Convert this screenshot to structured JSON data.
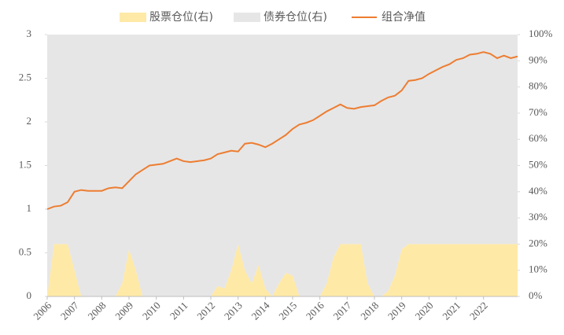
{
  "chart_data": {
    "type": "area",
    "stacked": true,
    "x": [
      2006,
      2006.25,
      2006.5,
      2006.75,
      2007,
      2007.25,
      2007.5,
      2007.75,
      2008,
      2008.25,
      2008.5,
      2008.75,
      2009,
      2009.25,
      2009.5,
      2009.75,
      2010,
      2010.25,
      2010.5,
      2010.75,
      2011,
      2011.25,
      2011.5,
      2011.75,
      2012,
      2012.25,
      2012.5,
      2012.75,
      2013,
      2013.25,
      2013.5,
      2013.75,
      2014,
      2014.25,
      2014.5,
      2014.75,
      2015,
      2015.25,
      2015.5,
      2015.75,
      2016,
      2016.25,
      2016.5,
      2016.75,
      2017,
      2017.25,
      2017.5,
      2017.75,
      2018,
      2018.25,
      2018.5,
      2018.75,
      2019,
      2019.25,
      2019.5,
      2019.75,
      2020,
      2020.25,
      2020.5,
      2020.75,
      2021,
      2021.25,
      2021.5,
      2021.75,
      2022,
      2022.25,
      2022.5,
      2022.75,
      2023,
      2023.25
    ],
    "series": [
      {
        "name": "股票仓位(右)",
        "type": "area",
        "axis": "y2",
        "color": "#ffe9a6",
        "values": [
          0,
          20,
          20,
          20,
          10,
          0,
          0,
          0,
          0,
          0,
          0,
          5,
          18,
          10,
          0,
          0,
          0,
          0,
          0,
          0,
          0,
          0,
          0,
          0,
          0,
          4,
          3,
          10,
          20,
          10,
          5,
          12,
          3,
          0,
          5,
          9,
          8,
          0,
          0,
          0,
          0,
          5,
          15,
          20,
          20,
          20,
          20,
          5,
          0,
          0,
          2,
          8,
          18,
          20,
          20,
          20,
          20,
          20,
          20,
          20,
          20,
          20,
          20,
          20,
          20,
          20,
          20,
          20,
          20,
          20
        ]
      },
      {
        "name": "债券仓位(右)",
        "type": "area",
        "axis": "y2",
        "color": "#e6e6e6",
        "values": [
          100,
          80,
          80,
          80,
          90,
          100,
          100,
          100,
          100,
          100,
          100,
          95,
          82,
          90,
          100,
          100,
          100,
          100,
          100,
          100,
          100,
          100,
          100,
          100,
          100,
          96,
          97,
          90,
          80,
          90,
          95,
          88,
          97,
          100,
          95,
          91,
          92,
          100,
          100,
          100,
          100,
          95,
          85,
          80,
          80,
          80,
          80,
          95,
          100,
          100,
          98,
          92,
          82,
          80,
          80,
          80,
          80,
          80,
          80,
          80,
          80,
          80,
          80,
          80,
          80,
          80,
          80,
          80,
          80,
          80
        ]
      },
      {
        "name": "组合净值",
        "type": "line",
        "color": "#ed7d31",
        "values": [
          1.0,
          1.03,
          1.04,
          1.08,
          1.2,
          1.22,
          1.21,
          1.21,
          1.21,
          1.24,
          1.25,
          1.24,
          1.32,
          1.4,
          1.45,
          1.5,
          1.51,
          1.52,
          1.55,
          1.58,
          1.55,
          1.54,
          1.55,
          1.56,
          1.58,
          1.63,
          1.65,
          1.67,
          1.66,
          1.75,
          1.76,
          1.74,
          1.71,
          1.75,
          1.8,
          1.85,
          1.92,
          1.97,
          1.99,
          2.02,
          2.07,
          2.12,
          2.16,
          2.2,
          2.16,
          2.15,
          2.17,
          2.18,
          2.19,
          2.24,
          2.28,
          2.3,
          2.36,
          2.47,
          2.48,
          2.5,
          2.55,
          2.59,
          2.63,
          2.66,
          2.71,
          2.73,
          2.77,
          2.78,
          2.8,
          2.78,
          2.73,
          2.76,
          2.73,
          2.75
        ]
      }
    ],
    "xlim": [
      2006,
      2023.25
    ],
    "xticks": [
      2006,
      2007,
      2008,
      2009,
      2010,
      2011,
      2012,
      2013,
      2014,
      2015,
      2016,
      2017,
      2018,
      2019,
      2020,
      2021,
      2022
    ],
    "ylim": [
      0,
      3
    ],
    "yticks": [
      0,
      0.5,
      1,
      1.5,
      2,
      2.5,
      3
    ],
    "y2lim": [
      0,
      100
    ],
    "y2ticks": [
      {
        "value": 0,
        "label": "0%"
      },
      {
        "value": 10,
        "label": "10%"
      },
      {
        "value": 20,
        "label": "20%"
      },
      {
        "value": 30,
        "label": "30%"
      },
      {
        "value": 40,
        "label": "40%"
      },
      {
        "value": 50,
        "label": "50%"
      },
      {
        "value": 60,
        "label": "60%"
      },
      {
        "value": 70,
        "label": "70%"
      },
      {
        "value": 80,
        "label": "80%"
      },
      {
        "value": 90,
        "label": "90%"
      },
      {
        "value": 100,
        "label": "100%"
      }
    ],
    "legend": "top"
  }
}
